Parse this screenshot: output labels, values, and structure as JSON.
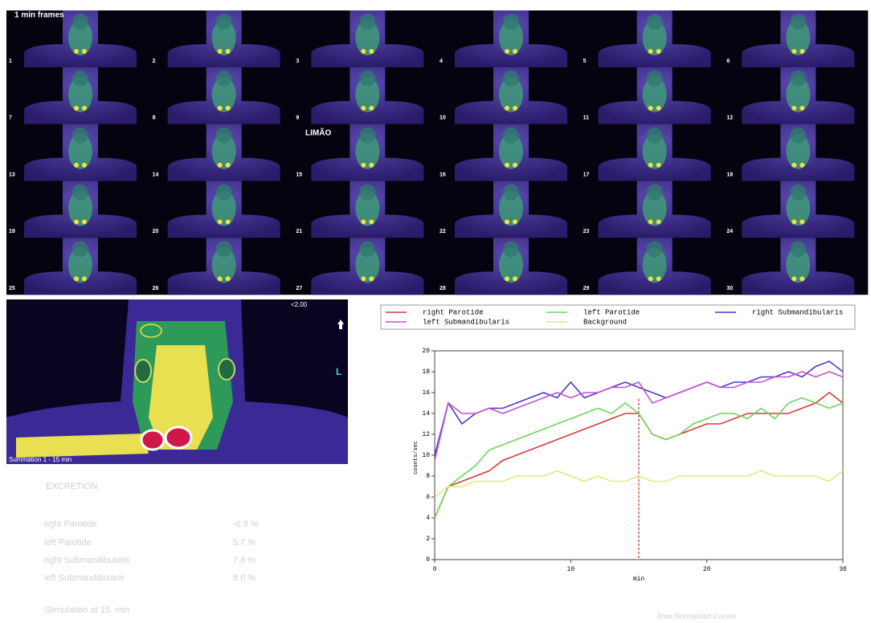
{
  "frames": {
    "title": "1 min frames",
    "labels": [
      1,
      2,
      3,
      4,
      5,
      6,
      7,
      8,
      9,
      10,
      11,
      12,
      13,
      14,
      15,
      16,
      17,
      18,
      19,
      20,
      21,
      22,
      23,
      24,
      25,
      26,
      27,
      28,
      29,
      30
    ],
    "note": "LIMÃO"
  },
  "summation": {
    "scale": "<2.00",
    "side": "L",
    "caption": "Summation 1 - 15 min"
  },
  "excretion": {
    "title": "EXCRETION",
    "rows": [
      [
        "right Parotide",
        "-6.8 %"
      ],
      [
        "left Parotide",
        "5.7 %"
      ],
      [
        "right Submandibularis",
        "7.8 %"
      ],
      [
        "left Submandibularis",
        "8.0 %"
      ]
    ],
    "footnote": "Stimulation at 15. min"
  },
  "chart_data": {
    "type": "line",
    "title": "Area Normalized Curves",
    "x_label": "min",
    "y_label": "counts/sec",
    "x": [
      0,
      1,
      2,
      3,
      4,
      5,
      6,
      7,
      8,
      9,
      10,
      11,
      12,
      13,
      14,
      15,
      16,
      17,
      18,
      19,
      20,
      21,
      22,
      23,
      24,
      25,
      26,
      27,
      28,
      29,
      30
    ],
    "series": [
      {
        "name": "right Parotide",
        "color": "#d83a3a",
        "values": [
          4,
          7,
          7.5,
          8,
          8.5,
          9.5,
          10,
          10.5,
          11,
          11.5,
          12,
          12.5,
          13,
          13.5,
          14,
          14,
          12,
          11.5,
          12,
          12.5,
          13,
          13,
          13.5,
          14,
          14,
          14,
          14,
          14.5,
          15,
          16,
          15
        ]
      },
      {
        "name": "left Parotide",
        "color": "#6fd35e",
        "values": [
          4,
          7,
          8,
          9,
          10.5,
          11,
          11.5,
          12,
          12.5,
          13,
          13.5,
          14,
          14.5,
          14,
          15,
          14,
          12,
          11.5,
          12,
          13,
          13.5,
          14,
          14,
          13.5,
          14.5,
          13.5,
          15,
          15.5,
          15,
          14.5,
          15
        ]
      },
      {
        "name": "right Submandibularis",
        "color": "#4a3ad0",
        "values": [
          10,
          15,
          13,
          14,
          14.5,
          14.5,
          15,
          15.5,
          16,
          15.5,
          17,
          15.5,
          16,
          16.5,
          17,
          16.5,
          16,
          15.5,
          16,
          16.5,
          17,
          16.5,
          17,
          17,
          17.5,
          17.5,
          18,
          17.5,
          18.5,
          19,
          18
        ]
      },
      {
        "name": "left Submandibularis",
        "color": "#c452cc",
        "values": [
          9.5,
          15,
          14,
          14,
          14.5,
          14,
          14.5,
          15,
          15.5,
          16,
          15.5,
          16,
          16,
          16.5,
          16.5,
          17,
          15,
          15.5,
          16,
          16.5,
          17,
          16.5,
          16.5,
          17,
          17,
          17.5,
          17.5,
          18,
          17.5,
          18,
          17.5
        ]
      },
      {
        "name": "Background",
        "color": "#e4e87a",
        "values": [
          6,
          7,
          7,
          7.5,
          7.5,
          7.5,
          8,
          8,
          8,
          8.5,
          8,
          7.5,
          8,
          7.5,
          7.5,
          8,
          7.5,
          7.5,
          8,
          8,
          8,
          8,
          8,
          8,
          8.5,
          8,
          8,
          8,
          8,
          7.5,
          8.5
        ]
      }
    ],
    "stimulation_x": 15,
    "stimulation_color": "#c03030",
    "xlim": [
      0,
      30
    ],
    "xticks": [
      0,
      10,
      20,
      30
    ],
    "ylim": [
      0,
      20
    ],
    "yticks": [
      0,
      2,
      4,
      6,
      8,
      10,
      12,
      14,
      16,
      18,
      20
    ]
  }
}
